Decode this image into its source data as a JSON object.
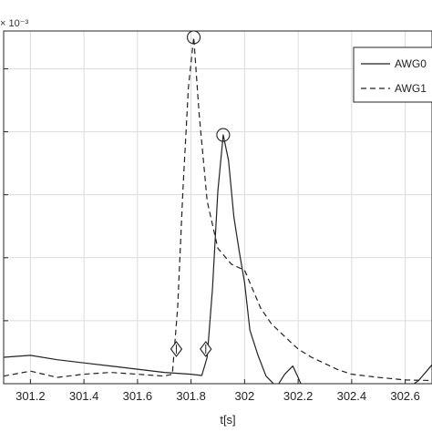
{
  "chart_data": {
    "type": "line",
    "xlabel": "t[s]",
    "ylabel": "",
    "y_exponent_label": "× 10⁻³",
    "xlim": [
      301.1,
      302.7
    ],
    "ylim": [
      0.0,
      5.6
    ],
    "x_ticks": [
      301.2,
      301.4,
      301.6,
      301.8,
      302,
      302.2,
      302.4,
      302.6
    ],
    "x_tick_labels": [
      "301.2",
      "301.4",
      "301.6",
      "301.8",
      "302",
      "302.2",
      "302.4",
      "302.6"
    ],
    "y_gridlines": [
      1,
      2,
      3,
      4,
      5
    ],
    "grid": true,
    "legend_position": "top-right",
    "series": [
      {
        "name": "AWG0",
        "style": "solid",
        "color": "#222222",
        "x": [
          301.1,
          301.2,
          301.3,
          301.4,
          301.5,
          301.6,
          301.7,
          301.8,
          301.84,
          301.86,
          301.88,
          301.9,
          301.92,
          301.94,
          301.96,
          301.98,
          302.0,
          302.02,
          302.05,
          302.08,
          302.12,
          302.15,
          302.18,
          302.2,
          302.23,
          302.26,
          302.3,
          302.4,
          302.5,
          302.6,
          302.65,
          302.7
        ],
        "y": [
          0.42,
          0.45,
          0.38,
          0.33,
          0.28,
          0.23,
          0.18,
          0.15,
          0.13,
          0.42,
          1.5,
          3.05,
          3.95,
          3.55,
          2.65,
          2.1,
          1.6,
          0.85,
          0.45,
          0.12,
          -0.05,
          0.15,
          0.28,
          0.1,
          -0.2,
          -0.3,
          -0.3,
          -0.3,
          -0.28,
          -0.1,
          0.05,
          0.3
        ]
      },
      {
        "name": "AWG1",
        "style": "dashed",
        "color": "#222222",
        "x": [
          301.1,
          301.2,
          301.3,
          301.4,
          301.5,
          301.6,
          301.7,
          301.73,
          301.75,
          301.77,
          301.79,
          301.81,
          301.83,
          301.86,
          301.9,
          301.95,
          302.0,
          302.03,
          302.06,
          302.1,
          302.15,
          302.2,
          302.25,
          302.3,
          302.35,
          302.4,
          302.5,
          302.6,
          302.7
        ],
        "y": [
          0.12,
          0.2,
          0.1,
          0.15,
          0.18,
          0.15,
          0.12,
          0.15,
          1.2,
          3.1,
          4.7,
          5.5,
          4.3,
          2.9,
          2.15,
          1.9,
          1.8,
          1.5,
          1.2,
          0.95,
          0.75,
          0.55,
          0.42,
          0.32,
          0.22,
          0.15,
          0.1,
          0.06,
          0.05
        ]
      }
    ],
    "annotations": [
      {
        "series": "AWG1",
        "marker": "circle",
        "x": 301.81,
        "y": 5.5
      },
      {
        "series": "AWG0",
        "marker": "circle",
        "x": 301.92,
        "y": 3.95
      },
      {
        "series": "AWG1",
        "marker": "diamond",
        "x": 301.745,
        "y": 0.55
      },
      {
        "series": "AWG0",
        "marker": "diamond",
        "x": 301.855,
        "y": 0.55
      }
    ]
  }
}
